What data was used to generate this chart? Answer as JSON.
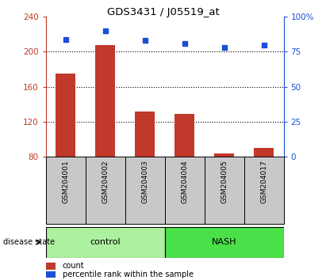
{
  "title": "GDS3431 / J05519_at",
  "samples": [
    "GSM204001",
    "GSM204002",
    "GSM204003",
    "GSM204004",
    "GSM204005",
    "GSM204017"
  ],
  "counts": [
    175,
    208,
    132,
    129,
    84,
    90
  ],
  "percentiles": [
    84,
    90,
    83,
    81,
    78,
    80
  ],
  "ylim_left": [
    80,
    240
  ],
  "ylim_right": [
    0,
    100
  ],
  "yticks_left": [
    80,
    120,
    160,
    200,
    240
  ],
  "yticks_right": [
    0,
    25,
    50,
    75,
    100
  ],
  "ytick_labels_right": [
    "0",
    "25",
    "50",
    "75",
    "100%"
  ],
  "grid_values": [
    120,
    160,
    200
  ],
  "bar_color": "#c0392b",
  "dot_color": "#1a4fd6",
  "control_color": "#adf0a0",
  "nash_color": "#4ae04a",
  "tick_area_color": "#c8c8c8",
  "legend_red_label": "count",
  "legend_blue_label": "percentile rank within the sample",
  "disease_state_label": "disease state",
  "control_samples": 3,
  "nash_samples": 3
}
